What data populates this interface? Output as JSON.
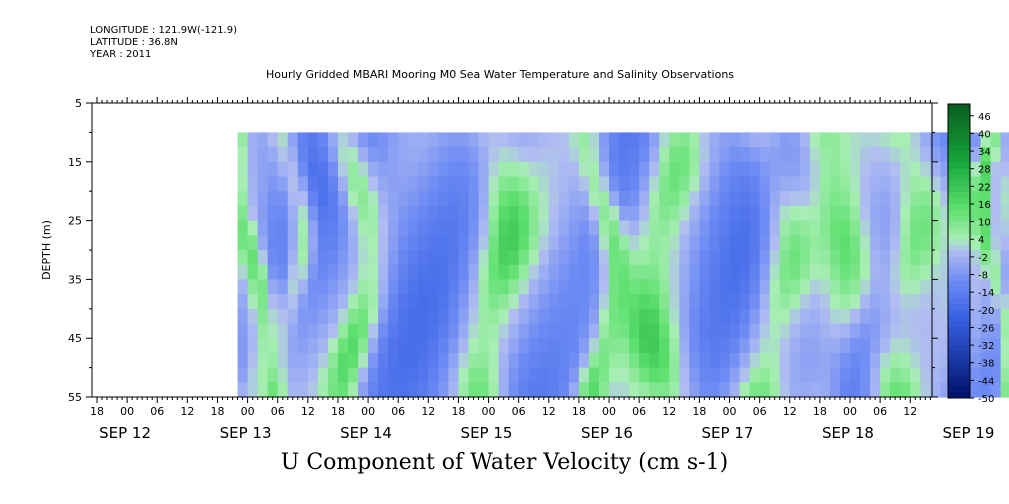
{
  "header": {
    "longitude": "LONGITUDE : 121.9W(-121.9)",
    "latitude": "LATITUDE : 36.8N",
    "year": "YEAR : 2011"
  },
  "chart_data": {
    "type": "heatmap",
    "title": "Hourly Gridded MBARI Mooring M0 Sea Water Temperature and Salinity Observations",
    "xlabel": "U Component of Water Velocity (cm s-1)",
    "ylabel": "DEPTH (m)",
    "y_ticks": [
      "5",
      "15",
      "25",
      "35",
      "45",
      "55"
    ],
    "ylim": [
      55,
      5
    ],
    "hour_ticks": [
      "18",
      "00",
      "06",
      "12",
      "18",
      "00",
      "06",
      "12",
      "18",
      "00",
      "06",
      "12",
      "18",
      "00",
      "06",
      "12",
      "18",
      "00",
      "06",
      "12",
      "18",
      "00",
      "06",
      "12",
      "18",
      "00",
      "06",
      "12",
      "18",
      "00",
      "06",
      "12"
    ],
    "date_ticks": [
      "SEP 12",
      "SEP 13",
      "SEP 14",
      "SEP 15",
      "SEP 16",
      "SEP 17",
      "SEP 18",
      "SEP 19"
    ],
    "colorbar": {
      "labels": [
        "46",
        "40",
        "34",
        "28",
        "22",
        "16",
        "10",
        "4",
        "-2",
        "-8",
        "-14",
        "-20",
        "-26",
        "-32",
        "-38",
        "-44",
        "-50"
      ],
      "range": [
        -50,
        50
      ],
      "colors": {
        "low": "#00106a",
        "mid_neg": "#6f8cf4",
        "light": "#b0bcf2",
        "mid_pos": "#5ee06e",
        "high": "#075b1d"
      }
    },
    "data_time_range": [
      "SEP 12 22:00",
      "SEP 19 18:00"
    ],
    "data_depth_range": [
      10,
      55
    ],
    "positive_bands_hours": [
      [
        4,
        8
      ],
      [
        28,
        32
      ],
      [
        36,
        40
      ],
      [
        48,
        55
      ],
      [
        74,
        84
      ],
      [
        98,
        103
      ],
      [
        107,
        118
      ],
      [
        130,
        140
      ],
      [
        142,
        152
      ],
      [
        156,
        166
      ],
      [
        178,
        180
      ],
      [
        184,
        188
      ],
      [
        200,
        206
      ],
      [
        220,
        226
      ],
      [
        232,
        240
      ]
    ]
  }
}
